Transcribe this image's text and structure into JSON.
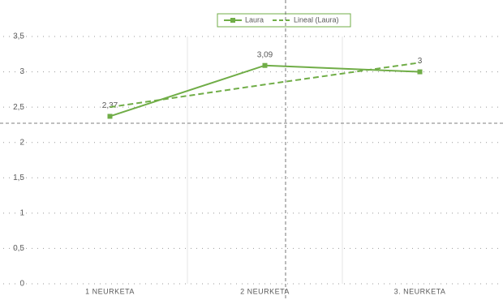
{
  "chart_data": {
    "type": "line",
    "categories": [
      "1 NEURKETA",
      "2 NEURKETA",
      "3. NEURKETA"
    ],
    "series": [
      {
        "name": "Laura",
        "color": "#70ad47",
        "values": [
          2.37,
          3.09,
          3
        ],
        "value_labels": [
          "2,37",
          "3,09",
          "3"
        ],
        "style": "solid"
      },
      {
        "name": "Lineal (Laura)",
        "color": "#70ad47",
        "values": [
          2.5,
          2.82,
          3.13
        ],
        "style": "dashed"
      }
    ],
    "ylim": [
      0,
      3.5
    ],
    "yticks": [
      0,
      {
        "value": 0.5,
        "label": "0,5"
      },
      1,
      {
        "value": 1.5,
        "label": "1,5"
      },
      2,
      {
        "value": 2.5,
        "label": "2,5"
      },
      3,
      {
        "value": 3.5,
        "label": "3,5"
      }
    ],
    "grid": true
  }
}
